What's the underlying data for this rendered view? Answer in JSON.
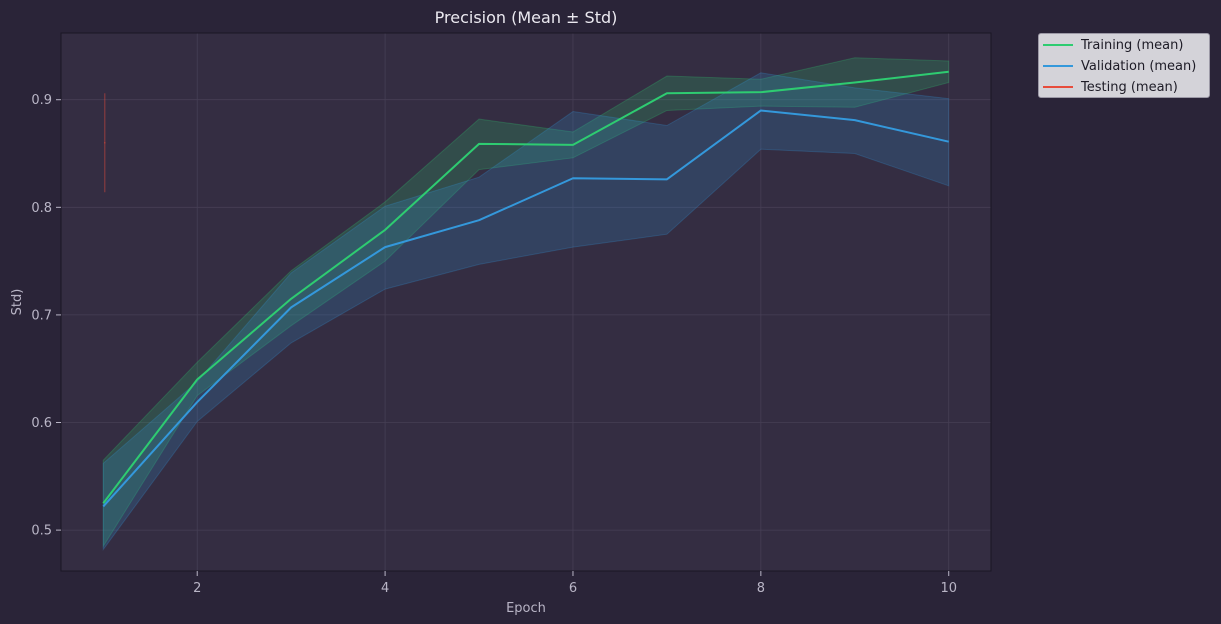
{
  "chart_data": {
    "type": "line",
    "title": "Precision (Mean ± Std)",
    "xlabel": "Epoch",
    "ylabel": "Std)",
    "xlim": [
      0.55,
      10.45
    ],
    "ylim": [
      0.462,
      0.962
    ],
    "x_ticks": [
      "2",
      "4",
      "6",
      "8",
      "10"
    ],
    "x_tick_values": [
      2,
      4,
      6,
      8,
      10
    ],
    "y_ticks": [
      "0.5",
      "0.6",
      "0.7",
      "0.8",
      "0.9"
    ],
    "y_tick_values": [
      0.5,
      0.6,
      0.7,
      0.8,
      0.9
    ],
    "grid": true,
    "legend_position": "outside-top-right",
    "series": [
      {
        "name": "Training (mean)",
        "color": "#2ecc71",
        "x": [
          1,
          2,
          3,
          4,
          5,
          6,
          7,
          8,
          9,
          10
        ],
        "mean": [
          0.525,
          0.64,
          0.715,
          0.779,
          0.859,
          0.858,
          0.906,
          0.907,
          0.916,
          0.926
        ],
        "upper": [
          0.565,
          0.656,
          0.741,
          0.805,
          0.882,
          0.87,
          0.922,
          0.919,
          0.939,
          0.936
        ],
        "lower": [
          0.485,
          0.625,
          0.69,
          0.75,
          0.835,
          0.846,
          0.89,
          0.894,
          0.893,
          0.916
        ]
      },
      {
        "name": "Validation (mean)",
        "color": "#3498db",
        "x": [
          1,
          2,
          3,
          4,
          5,
          6,
          7,
          8,
          9,
          10
        ],
        "mean": [
          0.522,
          0.619,
          0.707,
          0.763,
          0.788,
          0.827,
          0.826,
          0.89,
          0.881,
          0.861
        ],
        "upper": [
          0.562,
          0.638,
          0.739,
          0.801,
          0.828,
          0.889,
          0.876,
          0.925,
          0.911,
          0.901
        ],
        "lower": [
          0.482,
          0.601,
          0.674,
          0.724,
          0.747,
          0.763,
          0.775,
          0.854,
          0.85,
          0.82
        ]
      },
      {
        "name": "Testing (mean)",
        "color": "#e74c3c",
        "x": [
          1
        ],
        "mean": [
          0.86
        ],
        "upper": [
          0.906
        ],
        "lower": [
          0.814
        ]
      }
    ]
  },
  "colors": {
    "background": "#2a2438",
    "plot_area": "#342d42",
    "grid": "#463f55",
    "axis_text": "#b9b5c6",
    "title": "#ebe9f0"
  }
}
